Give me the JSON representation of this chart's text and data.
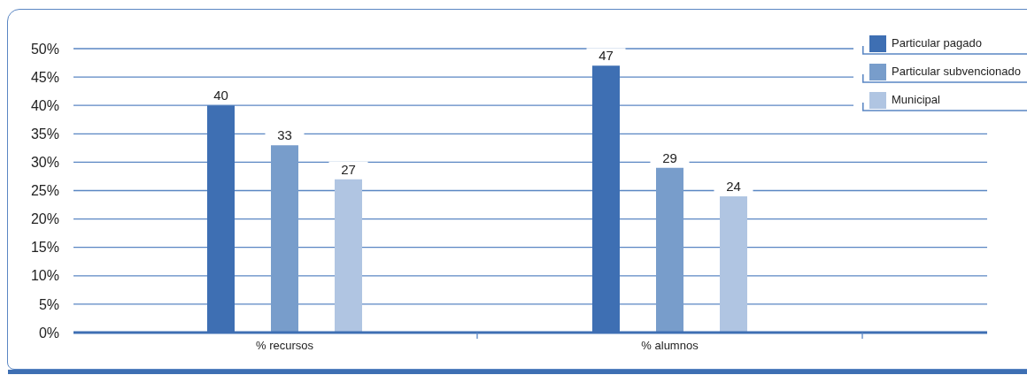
{
  "chart_data": {
    "type": "bar",
    "categories": [
      "% recursos",
      "% alumnos"
    ],
    "series": [
      {
        "name": "Particular pagado",
        "color": "#3e6fb3",
        "values": [
          40,
          47
        ]
      },
      {
        "name": "Particular subvencionado",
        "color": "#789dcb",
        "values": [
          33,
          29
        ]
      },
      {
        "name": "Municipal",
        "color": "#b0c5e2",
        "values": [
          27,
          24
        ]
      }
    ],
    "ylim": [
      0,
      50
    ],
    "yticks": [
      {
        "value": 0,
        "label": "0%"
      },
      {
        "value": 5,
        "label": "5%"
      },
      {
        "value": 10,
        "label": "10%"
      },
      {
        "value": 15,
        "label": "15%"
      },
      {
        "value": 20,
        "label": "20%"
      },
      {
        "value": 25,
        "label": "25%"
      },
      {
        "value": 30,
        "label": "30%"
      },
      {
        "value": 35,
        "label": "35%"
      },
      {
        "value": 40,
        "label": "40%"
      },
      {
        "value": 45,
        "label": "45%"
      },
      {
        "value": 50,
        "label": "50%"
      }
    ],
    "grid": "y",
    "legend": "top right",
    "data_labels": true
  }
}
